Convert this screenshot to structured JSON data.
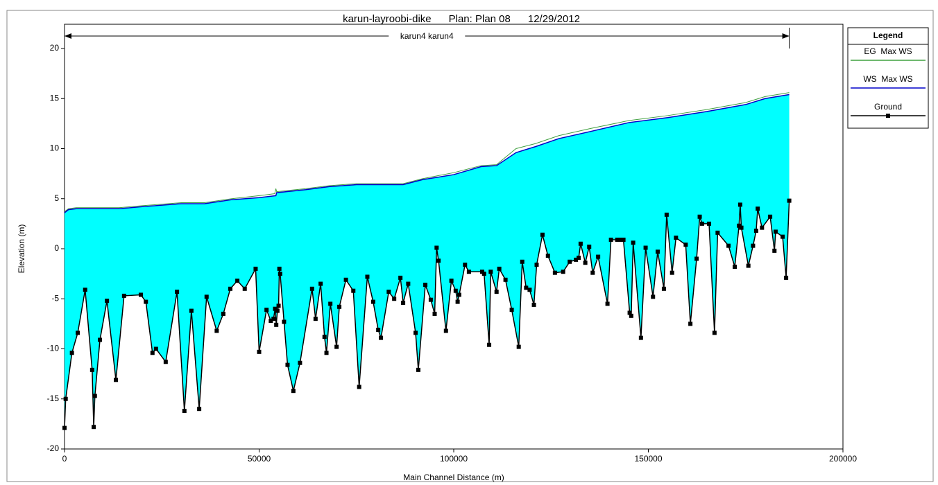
{
  "chart_data": {
    "type": "line",
    "title": "karun-layroobi-dike      Plan: Plan 08      12/29/2012",
    "reach_label": "karun4 karun4",
    "xlabel": "Main Channel Distance (m)",
    "ylabel": "Elevation (m)",
    "xlim": [
      0,
      200000
    ],
    "xticks": [
      0,
      50000,
      100000,
      150000,
      200000
    ],
    "ylim": [
      -20,
      20
    ],
    "yticks": [
      -20,
      -15,
      -10,
      -5,
      0,
      5,
      10,
      15,
      20
    ],
    "legend": "right",
    "legend_title": "Legend",
    "water_fill_color": "#00ffff",
    "series": [
      {
        "name": "EG  Max WS",
        "color": "#3fa03f",
        "x": [
          0,
          1000,
          3000,
          14000,
          20000,
          30000,
          36000,
          43000,
          50000,
          54000,
          54300,
          54500,
          62000,
          68000,
          75000,
          87000,
          92000,
          100000,
          107000,
          111000,
          116000,
          121000,
          127000,
          135000,
          145000,
          155000,
          165000,
          175000,
          180000,
          186200
        ],
        "values": [
          3.7,
          4.0,
          4.1,
          4.1,
          4.3,
          4.6,
          4.6,
          5.0,
          5.3,
          5.5,
          6.0,
          5.7,
          6.0,
          6.3,
          6.5,
          6.5,
          7.0,
          7.6,
          8.3,
          8.4,
          10.0,
          10.5,
          11.3,
          12.0,
          12.8,
          13.3,
          13.9,
          14.6,
          15.2,
          15.6
        ]
      },
      {
        "name": "WS  Max WS",
        "color": "#0000c8",
        "x": [
          0,
          1000,
          3000,
          14000,
          20000,
          30000,
          36000,
          43000,
          50000,
          54300,
          54500,
          62000,
          68000,
          75000,
          87000,
          92000,
          100000,
          107000,
          111000,
          116000,
          121000,
          127000,
          135000,
          145000,
          155000,
          165000,
          175000,
          180000,
          186200
        ],
        "values": [
          3.6,
          3.9,
          4.0,
          4.0,
          4.2,
          4.5,
          4.5,
          4.9,
          5.1,
          5.3,
          5.6,
          5.9,
          6.2,
          6.4,
          6.4,
          6.9,
          7.4,
          8.2,
          8.3,
          9.6,
          10.2,
          11.0,
          11.7,
          12.6,
          13.1,
          13.7,
          14.4,
          15.0,
          15.4
        ]
      },
      {
        "name": "Ground",
        "color": "#000000",
        "x": [
          0,
          300,
          1900,
          3400,
          5300,
          7100,
          7500,
          7800,
          9100,
          10900,
          13200,
          15300,
          19600,
          20900,
          22600,
          23500,
          26000,
          28900,
          30800,
          32600,
          34600,
          36500,
          39100,
          40800,
          42600,
          44400,
          46300,
          49100,
          50000,
          51900,
          53000,
          53700,
          54100,
          54400,
          54700,
          55000,
          55200,
          55400,
          56400,
          57300,
          58800,
          60500,
          63600,
          64500,
          65800,
          66800,
          67300,
          68300,
          69900,
          70600,
          72300,
          74200,
          75700,
          77800,
          79300,
          80600,
          81300,
          83300,
          84700,
          86300,
          87000,
          88300,
          90200,
          90900,
          92700,
          94100,
          95100,
          95600,
          96100,
          98000,
          99400,
          100500,
          101000,
          101400,
          102900,
          103900,
          107300,
          107800,
          109100,
          109500,
          111000,
          111700,
          113300,
          114900,
          116700,
          117600,
          118600,
          119500,
          120600,
          121300,
          122800,
          124200,
          126000,
          128100,
          129800,
          131400,
          132100,
          132600,
          133800,
          134800,
          135700,
          137100,
          139500,
          140400,
          142000,
          142700,
          143600,
          145200,
          145600,
          146100,
          148100,
          149300,
          151200,
          152400,
          154000,
          154700,
          156100,
          157100,
          159600,
          160800,
          162400,
          163200,
          163800,
          165600,
          167000,
          167800,
          170600,
          172200,
          173300,
          173600,
          173900,
          175700,
          176900,
          177700,
          178100,
          179200,
          181300,
          182400,
          182700,
          184500,
          185400,
          186200
        ],
        "values": [
          -17.9,
          -15.0,
          -10.4,
          -8.4,
          -4.1,
          -12.1,
          -17.8,
          -14.7,
          -9.1,
          -5.2,
          -13.1,
          -4.7,
          -4.6,
          -5.3,
          -10.4,
          -10.0,
          -11.3,
          -4.3,
          -16.2,
          -6.2,
          -16.0,
          -4.8,
          -8.2,
          -6.5,
          -4.0,
          -3.2,
          -4.0,
          -2.0,
          -10.3,
          -6.1,
          -7.2,
          -7.0,
          -6.0,
          -7.6,
          -6.2,
          -5.7,
          -2.0,
          -2.5,
          -7.3,
          -11.6,
          -14.2,
          -11.4,
          -4.0,
          -7.0,
          -3.5,
          -8.8,
          -10.4,
          -5.5,
          -9.8,
          -5.8,
          -3.1,
          -4.2,
          -13.8,
          -2.8,
          -5.3,
          -8.1,
          -8.9,
          -4.3,
          -5.0,
          -2.9,
          -5.4,
          -3.5,
          -8.4,
          -12.1,
          -3.6,
          -5.1,
          -6.5,
          0.1,
          -1.2,
          -8.2,
          -3.2,
          -4.2,
          -5.3,
          -4.6,
          -1.6,
          -2.3,
          -2.3,
          -2.5,
          -9.6,
          -2.3,
          -4.3,
          -2.0,
          -3.1,
          -6.1,
          -9.8,
          -1.3,
          -3.9,
          -4.1,
          -5.6,
          -1.6,
          1.4,
          -0.7,
          -2.4,
          -2.3,
          -1.3,
          -1.1,
          -0.9,
          0.5,
          -1.4,
          0.2,
          -2.4,
          -0.8,
          -5.5,
          0.9,
          0.9,
          0.9,
          0.9,
          -6.4,
          -6.7,
          0.6,
          -8.9,
          0.1,
          -4.8,
          -0.3,
          -4.0,
          3.4,
          -2.4,
          1.1,
          0.4,
          -7.5,
          -1.0,
          3.2,
          2.5,
          2.5,
          -8.4,
          1.6,
          0.3,
          -1.8,
          2.3,
          4.4,
          2.1,
          -1.7,
          0.3,
          1.8,
          4.0,
          2.1,
          3.2,
          -0.2,
          1.7,
          1.2,
          -2.9,
          4.8
        ]
      }
    ]
  }
}
